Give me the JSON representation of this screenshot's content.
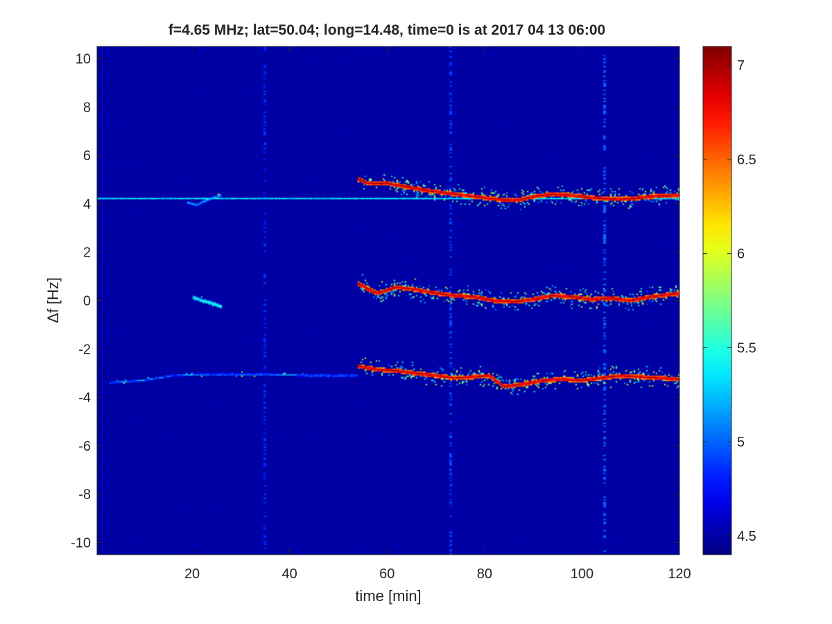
{
  "chart_data": {
    "type": "heatmap",
    "title": "f=4.65 MHz;  lat=50.04; long=14.48, time=0 is at 2017 04 13 06:00",
    "xlabel": "time [min]",
    "ylabel": "Δf [Hz]",
    "xlim": [
      0.5,
      120
    ],
    "ylim": [
      -10.5,
      10.5
    ],
    "xticks": [
      20,
      40,
      60,
      80,
      100,
      120
    ],
    "yticks": [
      10,
      8,
      6,
      4,
      2,
      0,
      -2,
      -4,
      -6,
      -8,
      -10
    ],
    "colorbar": {
      "colormap": "jet",
      "range": [
        4.4,
        7.1
      ],
      "ticks": [
        4.5,
        5,
        5.5,
        6,
        6.5,
        7
      ]
    },
    "background_level": 4.5,
    "grid": false,
    "traces": [
      {
        "points": [
          [
            0.5,
            4.2
          ],
          [
            20,
            4.2
          ],
          [
            40,
            4.2
          ],
          [
            55,
            4.2
          ],
          [
            56,
            4.2
          ],
          [
            60,
            4.2
          ],
          [
            120,
            4.2
          ]
        ],
        "level": 5.6,
        "width": 0.04,
        "note_start": 0.5
      },
      {
        "points": [
          [
            54,
            5.05
          ],
          [
            56,
            4.85
          ],
          [
            60,
            4.85
          ],
          [
            64,
            4.7
          ],
          [
            68,
            4.55
          ],
          [
            72,
            4.45
          ],
          [
            76,
            4.35
          ],
          [
            80,
            4.25
          ],
          [
            84,
            4.15
          ],
          [
            87,
            4.15
          ],
          [
            90,
            4.3
          ],
          [
            94,
            4.4
          ],
          [
            98,
            4.35
          ],
          [
            102,
            4.25
          ],
          [
            106,
            4.2
          ],
          [
            110,
            4.2
          ],
          [
            114,
            4.3
          ],
          [
            120,
            4.35
          ]
        ],
        "level": 7.0,
        "width": 0.09,
        "spread": 0.45
      },
      {
        "points": [
          [
            54,
            0.7
          ],
          [
            58,
            0.3
          ],
          [
            62,
            0.55
          ],
          [
            66,
            0.45
          ],
          [
            70,
            0.3
          ],
          [
            74,
            0.2
          ],
          [
            78,
            0.15
          ],
          [
            82,
            0.0
          ],
          [
            86,
            -0.05
          ],
          [
            90,
            0.05
          ],
          [
            94,
            0.2
          ],
          [
            98,
            0.15
          ],
          [
            102,
            0.05
          ],
          [
            106,
            0.1
          ],
          [
            110,
            0.0
          ],
          [
            114,
            0.15
          ],
          [
            120,
            0.3
          ]
        ],
        "level": 7.0,
        "width": 0.09,
        "spread": 0.5
      },
      {
        "points": [
          [
            54,
            -2.7
          ],
          [
            58,
            -2.85
          ],
          [
            62,
            -2.9
          ],
          [
            66,
            -3.0
          ],
          [
            70,
            -3.1
          ],
          [
            74,
            -3.2
          ],
          [
            78,
            -3.15
          ],
          [
            81,
            -3.1
          ],
          [
            84,
            -3.55
          ],
          [
            88,
            -3.45
          ],
          [
            92,
            -3.3
          ],
          [
            96,
            -3.25
          ],
          [
            100,
            -3.3
          ],
          [
            104,
            -3.2
          ],
          [
            108,
            -3.1
          ],
          [
            112,
            -3.15
          ],
          [
            116,
            -3.2
          ],
          [
            120,
            -3.25
          ]
        ],
        "level": 7.0,
        "width": 0.09,
        "spread": 0.45
      },
      {
        "points": [
          [
            3,
            -3.4
          ],
          [
            10,
            -3.3
          ],
          [
            16,
            -3.1
          ],
          [
            22,
            -3.05
          ],
          [
            30,
            -3.05
          ],
          [
            36,
            -3.05
          ],
          [
            44,
            -3.1
          ],
          [
            50,
            -3.1
          ],
          [
            54,
            -3.1
          ]
        ],
        "level": 5.2,
        "width": 0.05,
        "spread": 0.1
      },
      {
        "points": [
          [
            20,
            0.15
          ],
          [
            22,
            0.0
          ],
          [
            24,
            -0.1
          ],
          [
            26,
            -0.25
          ]
        ],
        "level": 5.6,
        "width": 0.08,
        "spread": 0.2
      },
      {
        "points": [
          [
            19,
            4.05
          ],
          [
            21,
            3.95
          ],
          [
            23,
            4.15
          ],
          [
            26,
            4.35
          ]
        ],
        "level": 5.3,
        "width": 0.06,
        "spread": 0.1
      }
    ],
    "vertical_streaks": [
      {
        "x": 35,
        "level": 4.75
      },
      {
        "x": 73,
        "level": 4.8
      },
      {
        "x": 104.5,
        "level": 4.9
      }
    ]
  }
}
